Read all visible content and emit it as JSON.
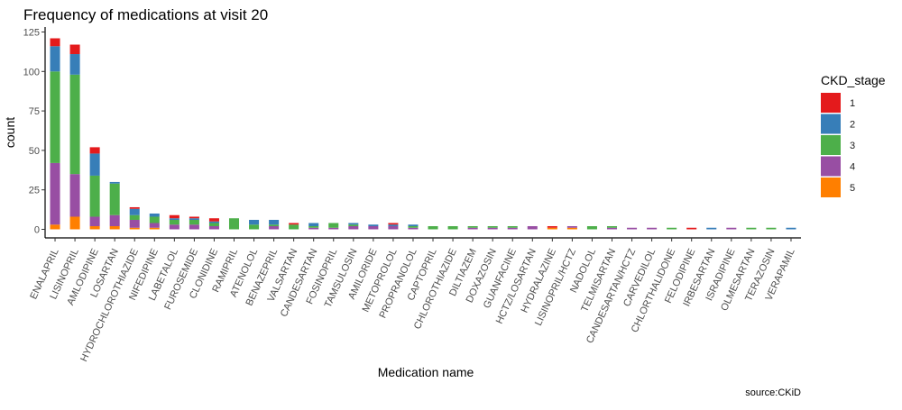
{
  "chart_data": {
    "type": "bar",
    "stacked": true,
    "title": "Frequency of medications at visit 20",
    "xlabel": "Medication name",
    "ylabel": "count",
    "caption": "source:CKiD",
    "ylim": [
      0,
      125
    ],
    "yticks": [
      "0",
      "25",
      "50",
      "75",
      "100",
      "125"
    ],
    "legend": {
      "title": "CKD_stage",
      "position": "right"
    },
    "categories": [
      "ENALAPRIL",
      "LISINOPRIL",
      "AMLODIPINE",
      "LOSARTAN",
      "HYDROCHLOROTHIAZIDE",
      "NIFEDIPINE",
      "LABETALOL",
      "FUROSEMIDE",
      "CLONIDINE",
      "RAMIPRIL",
      "ATENOLOL",
      "BENAZEPRIL",
      "VALSARTAN",
      "CANDESARTAN",
      "FOSINOPRIL",
      "TAMSULOSIN",
      "AMILORIDE",
      "METOPROLOL",
      "PROPRANOLOL",
      "CAPTOPRIL",
      "CHLOROTHIAZIDE",
      "DILTIAZEM",
      "DOXAZOSIN",
      "GUANFACINE",
      "HCTZ/LOSARTAN",
      "HYDRALAZINE",
      "LISINOPRIL/HCTZ",
      "NADOLOL",
      "TELMISARTAN",
      "CANDESARTAN/HCTZ",
      "CARVEDILOL",
      "CHLORTHALIDONE",
      "FELODIPINE",
      "IRBESARTAN",
      "ISRADIPINE",
      "OLMESARTAN",
      "TERAZOSIN",
      "VERAPAMIL"
    ],
    "series": [
      {
        "name": "1",
        "color": "#E41A1C",
        "values": [
          5,
          6,
          4,
          0,
          1,
          0,
          2,
          1,
          2,
          0,
          0,
          0,
          1,
          0,
          0,
          0,
          0,
          1,
          0,
          0,
          0,
          0,
          0,
          0,
          0,
          1,
          0,
          0,
          0,
          0,
          0,
          0,
          1,
          0,
          0,
          0,
          0,
          0
        ]
      },
      {
        "name": "2",
        "color": "#377EB8",
        "values": [
          16,
          13,
          14,
          1,
          4,
          2,
          1,
          1,
          1,
          0,
          3,
          3,
          0,
          2,
          0,
          1,
          1,
          1,
          1,
          0,
          0,
          0,
          0,
          0,
          0,
          0,
          0,
          0,
          0,
          0,
          0,
          0,
          0,
          1,
          0,
          0,
          0,
          1
        ]
      },
      {
        "name": "3",
        "color": "#4DAF4A",
        "values": [
          58,
          63,
          26,
          20,
          3,
          4,
          3,
          3,
          2,
          7,
          3,
          1,
          3,
          1,
          3,
          1,
          0,
          0,
          1,
          2,
          2,
          1,
          1,
          1,
          0,
          0,
          0,
          2,
          1,
          0,
          0,
          1,
          0,
          0,
          0,
          1,
          1,
          0
        ]
      },
      {
        "name": "4",
        "color": "#984EA3",
        "values": [
          39,
          27,
          6,
          7,
          5,
          3,
          3,
          3,
          2,
          0,
          0,
          2,
          0,
          1,
          1,
          2,
          2,
          2,
          1,
          0,
          0,
          1,
          1,
          1,
          2,
          0,
          1,
          0,
          1,
          1,
          1,
          0,
          0,
          0,
          1,
          0,
          0,
          0
        ]
      },
      {
        "name": "5",
        "color": "#FF7F00",
        "values": [
          3,
          8,
          2,
          2,
          1,
          1,
          0,
          0,
          0,
          0,
          0,
          0,
          0,
          0,
          0,
          0,
          0,
          0,
          0,
          0,
          0,
          0,
          0,
          0,
          0,
          1,
          1,
          0,
          0,
          0,
          0,
          0,
          0,
          0,
          0,
          0,
          0,
          0
        ]
      }
    ]
  }
}
